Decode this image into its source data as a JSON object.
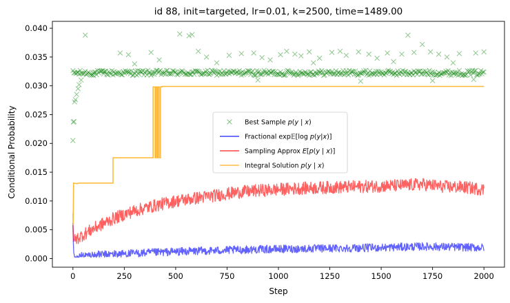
{
  "chart_data": {
    "type": "line",
    "title": "id 88, init=targeted, lr=0.01, k=2500, time=1489.00",
    "xlabel": "Step",
    "ylabel": "Conditional Probability",
    "xlim": [
      -100,
      2100
    ],
    "ylim": [
      -0.0015,
      0.0412
    ],
    "xticks": [
      0,
      250,
      500,
      750,
      1000,
      1250,
      1500,
      1750,
      2000
    ],
    "yticks": [
      0.0,
      0.005,
      0.01,
      0.015,
      0.02,
      0.025,
      0.03,
      0.035,
      0.04
    ],
    "ytick_labels": [
      "0.000",
      "0.005",
      "0.010",
      "0.015",
      "0.020",
      "0.025",
      "0.030",
      "0.035",
      "0.040"
    ],
    "grid": false,
    "legend_position": "center-right",
    "series": [
      {
        "name": "Best Sample p(y | x)",
        "kind": "scatter-x",
        "color": "#008000",
        "band": [
          0.0318,
          0.0327
        ],
        "outliers": [
          [
            0,
            0.0205
          ],
          [
            2,
            0.0237
          ],
          [
            5,
            0.0238
          ],
          [
            8,
            0.0272
          ],
          [
            12,
            0.0276
          ],
          [
            18,
            0.0285
          ],
          [
            25,
            0.0295
          ],
          [
            30,
            0.0302
          ],
          [
            40,
            0.031
          ],
          [
            60,
            0.0388
          ],
          [
            100,
            0.0318
          ],
          [
            150,
            0.0324
          ],
          [
            230,
            0.0357
          ],
          [
            270,
            0.0354
          ],
          [
            380,
            0.0358
          ],
          [
            420,
            0.0345
          ],
          [
            520,
            0.039
          ],
          [
            565,
            0.0387
          ],
          [
            580,
            0.0389
          ],
          [
            610,
            0.036
          ],
          [
            650,
            0.035
          ],
          [
            760,
            0.0353
          ],
          [
            820,
            0.0356
          ],
          [
            880,
            0.0357
          ],
          [
            920,
            0.0349
          ],
          [
            960,
            0.0345
          ],
          [
            1010,
            0.0354
          ],
          [
            1040,
            0.036
          ],
          [
            1080,
            0.0355
          ],
          [
            1110,
            0.0352
          ],
          [
            1150,
            0.0359
          ],
          [
            1200,
            0.0348
          ],
          [
            1260,
            0.0358
          ],
          [
            1300,
            0.036
          ],
          [
            1330,
            0.0353
          ],
          [
            1390,
            0.0359
          ],
          [
            1440,
            0.0355
          ],
          [
            1480,
            0.0348
          ],
          [
            1530,
            0.0357
          ],
          [
            1600,
            0.0355
          ],
          [
            1630,
            0.0388
          ],
          [
            1660,
            0.0358
          ],
          [
            1700,
            0.0372
          ],
          [
            1740,
            0.0359
          ],
          [
            1780,
            0.0355
          ],
          [
            1820,
            0.035
          ],
          [
            1880,
            0.0356
          ],
          [
            1960,
            0.0357
          ],
          [
            2000,
            0.0359
          ],
          [
            300,
            0.0338
          ],
          [
            700,
            0.034
          ],
          [
            1170,
            0.034
          ],
          [
            1560,
            0.0342
          ],
          [
            1850,
            0.034
          ],
          [
            900,
            0.031
          ],
          [
            1400,
            0.0308
          ],
          [
            1750,
            0.0309
          ],
          [
            1950,
            0.0311
          ]
        ]
      },
      {
        "name": "Fractional exp E[log p(y|x)]",
        "color": "#0000ff",
        "points": [
          [
            0,
            0.0058
          ],
          [
            3,
            0.0012
          ],
          [
            8,
            0.0004
          ],
          [
            50,
            0.0005
          ],
          [
            150,
            0.0007
          ],
          [
            300,
            0.0009
          ],
          [
            500,
            0.0012
          ],
          [
            700,
            0.0014
          ],
          [
            900,
            0.0016
          ],
          [
            1100,
            0.0017
          ],
          [
            1300,
            0.0018
          ],
          [
            1500,
            0.0019
          ],
          [
            1700,
            0.0021
          ],
          [
            2000,
            0.0019
          ]
        ],
        "noise": 0.0007
      },
      {
        "name": "Sampling Approx E[p(y | x)]",
        "color": "#ff0000",
        "points": [
          [
            0,
            0.0062
          ],
          [
            4,
            0.003
          ],
          [
            20,
            0.0035
          ],
          [
            100,
            0.0052
          ],
          [
            200,
            0.007
          ],
          [
            300,
            0.0083
          ],
          [
            400,
            0.0092
          ],
          [
            500,
            0.01
          ],
          [
            600,
            0.0105
          ],
          [
            700,
            0.011
          ],
          [
            800,
            0.0115
          ],
          [
            900,
            0.0118
          ],
          [
            1000,
            0.012
          ],
          [
            1100,
            0.0122
          ],
          [
            1200,
            0.0123
          ],
          [
            1300,
            0.0124
          ],
          [
            1400,
            0.0125
          ],
          [
            1500,
            0.0126
          ],
          [
            1600,
            0.0127
          ],
          [
            1700,
            0.0129
          ],
          [
            1800,
            0.0125
          ],
          [
            1900,
            0.0124
          ],
          [
            2000,
            0.012
          ]
        ],
        "noise": 0.0011
      },
      {
        "name": "Integral Solution p(y | x)",
        "color": "#ffa500",
        "points": [
          [
            0,
            0.0078
          ],
          [
            1,
            0.006
          ],
          [
            3,
            0.0131
          ],
          [
            20,
            0.013
          ],
          [
            30,
            0.0131
          ],
          [
            195,
            0.0131
          ],
          [
            195,
            0.0175
          ],
          [
            390,
            0.0175
          ],
          [
            390,
            0.0298
          ],
          [
            400,
            0.0298
          ],
          [
            400,
            0.0175
          ],
          [
            404,
            0.0175
          ],
          [
            404,
            0.0298
          ],
          [
            410,
            0.0298
          ],
          [
            410,
            0.0175
          ],
          [
            414,
            0.0175
          ],
          [
            414,
            0.0298
          ],
          [
            420,
            0.0298
          ],
          [
            420,
            0.0175
          ],
          [
            426,
            0.0175
          ],
          [
            426,
            0.0298
          ],
          [
            432,
            0.0298
          ],
          [
            432,
            0.0299
          ],
          [
            2000,
            0.0299
          ]
        ]
      }
    ]
  }
}
